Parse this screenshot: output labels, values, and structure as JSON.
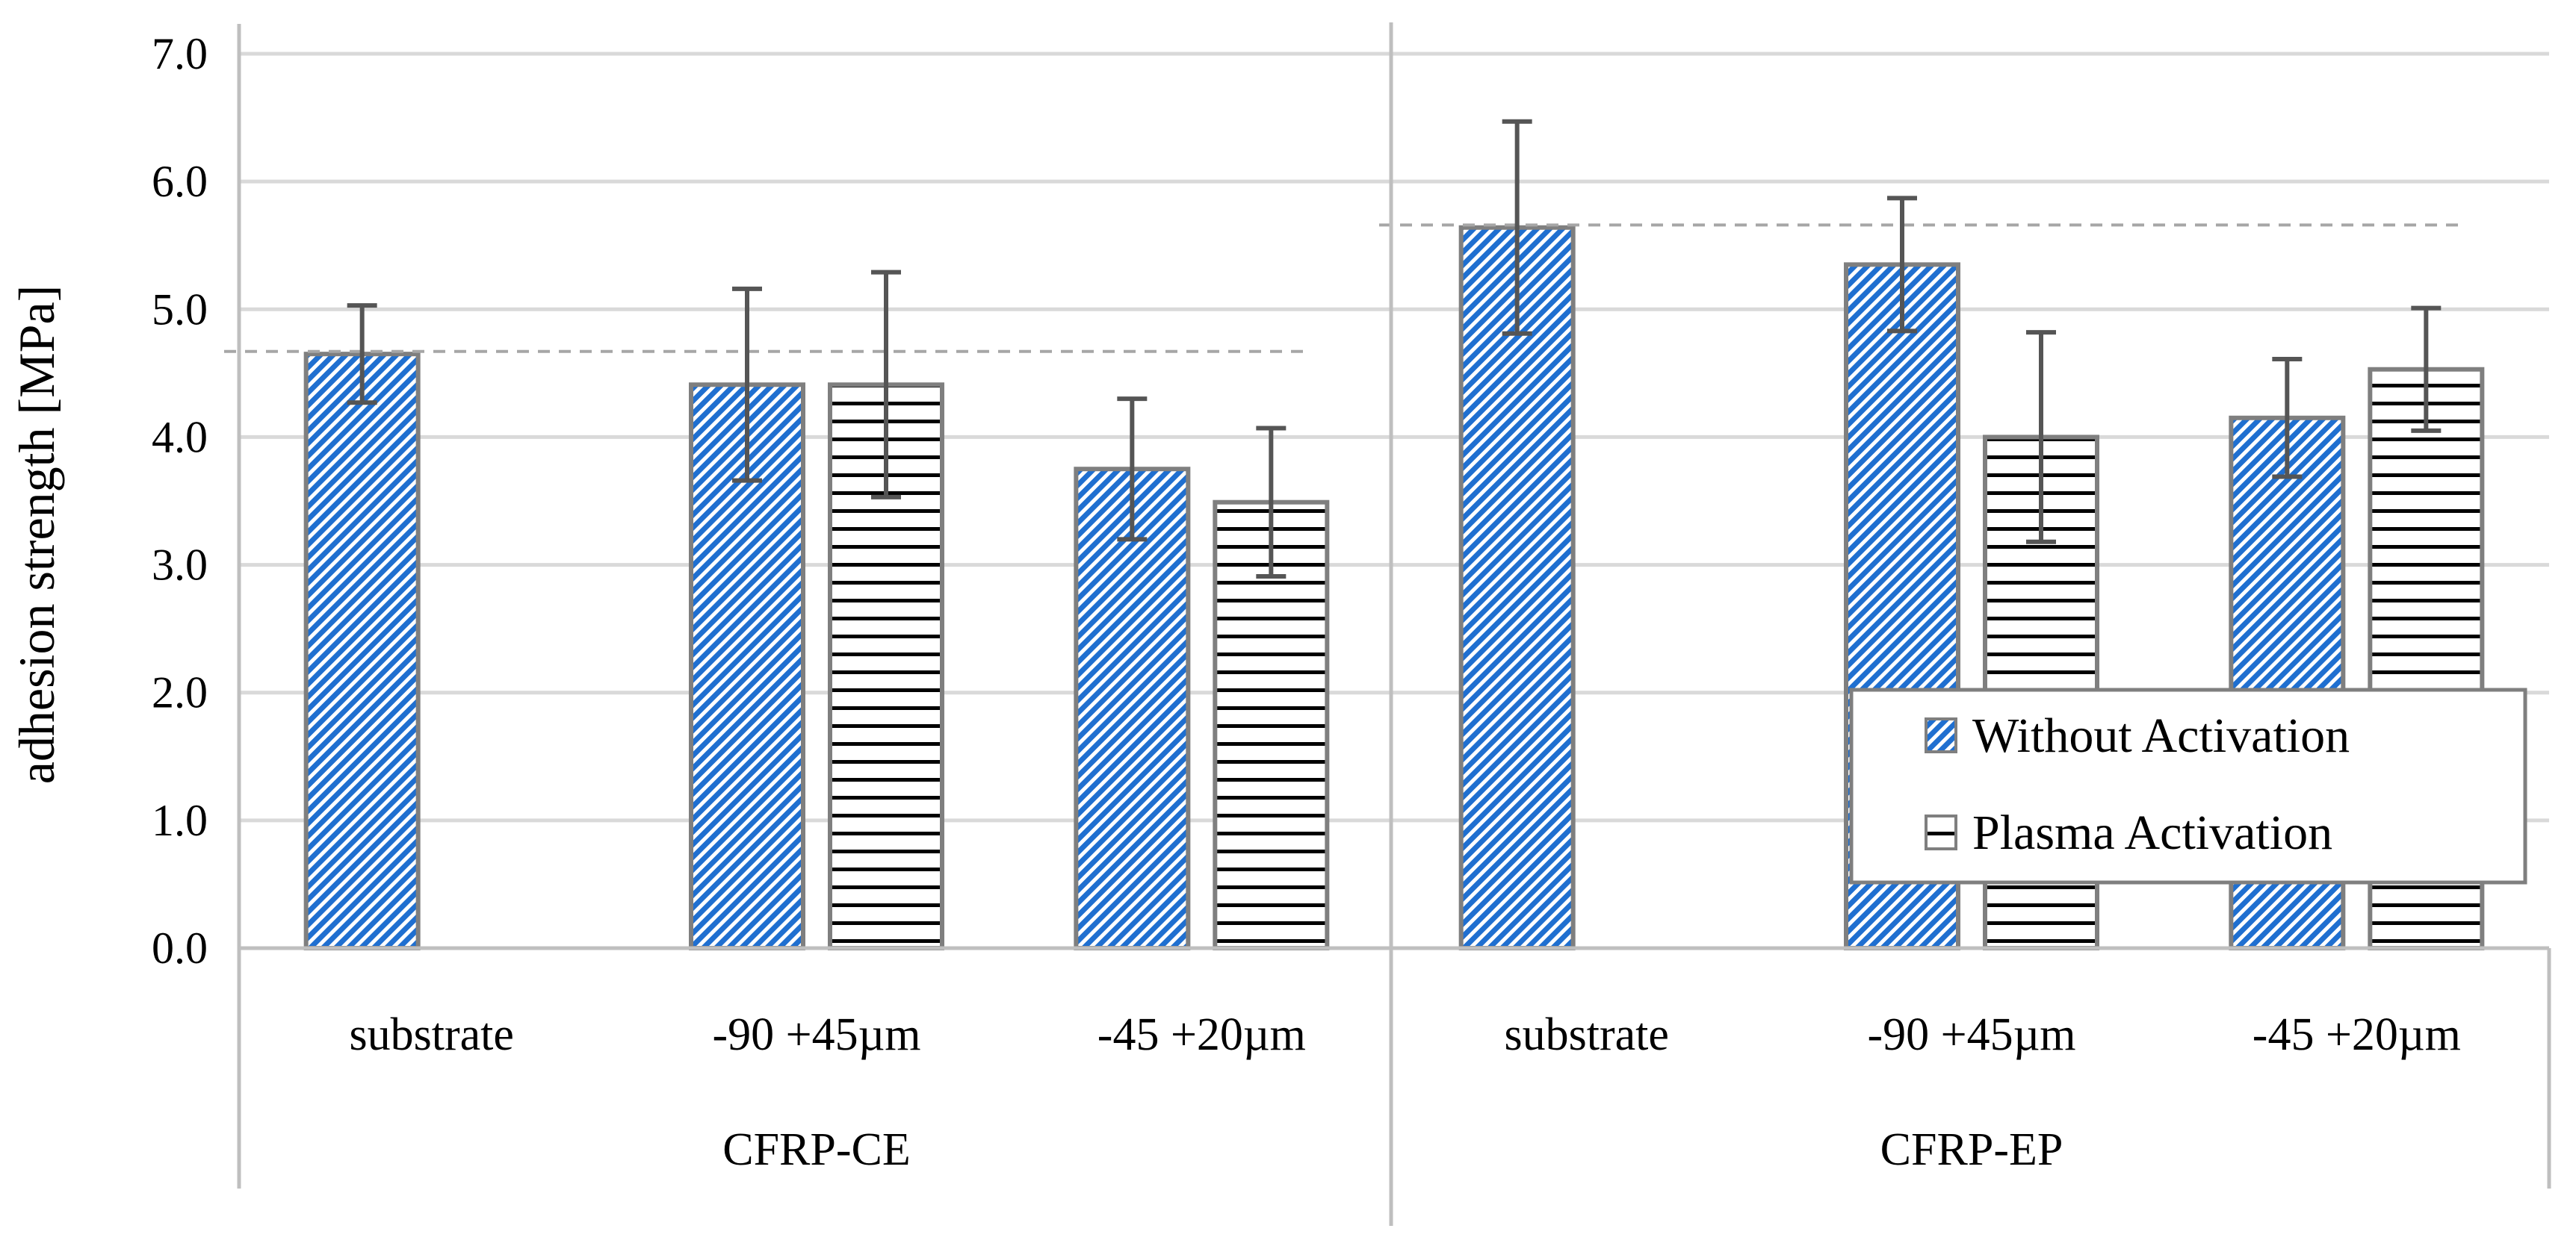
{
  "chart_data": {
    "type": "bar",
    "title": "",
    "xlabel": "",
    "ylabel": "adhesion strength [MPa]",
    "ylim": [
      0,
      7
    ],
    "ytick_step": 1,
    "ytick_labels": [
      "0.0",
      "1.0",
      "2.0",
      "3.0",
      "4.0",
      "5.0",
      "6.0",
      "7.0"
    ],
    "groups": [
      {
        "name": "CFRP-CE",
        "categories": [
          "substrate",
          "-90 +45µm",
          "-45 +20µm"
        ],
        "reference_line": 4.67
      },
      {
        "name": "CFRP-EP",
        "categories": [
          "substrate",
          "-90 +45µm",
          "-45 +20µm"
        ],
        "reference_line": 5.66
      }
    ],
    "series": [
      {
        "name": "Without Activation",
        "pattern": "diagonal-hatch",
        "values": [
          4.65,
          4.41,
          3.75,
          5.64,
          5.35,
          4.15
        ],
        "errors": [
          0.38,
          0.75,
          0.55,
          0.83,
          0.52,
          0.46
        ]
      },
      {
        "name": "Plasma Activation",
        "pattern": "horizontal-lines",
        "values": [
          null,
          4.41,
          3.49,
          null,
          4.0,
          4.53
        ],
        "errors": [
          null,
          0.88,
          0.58,
          null,
          0.82,
          0.48
        ]
      }
    ],
    "legend_position": "lower-right",
    "grid": true,
    "colors": {
      "hatch_blue": "#1f6fd0",
      "line_black": "#000000",
      "bar_outline": "#7f7f7f",
      "grid": "#d9d9d9",
      "axis": "#bfbfbf",
      "error_bar": "#555555",
      "reference_line": "#a6a6a6"
    }
  }
}
